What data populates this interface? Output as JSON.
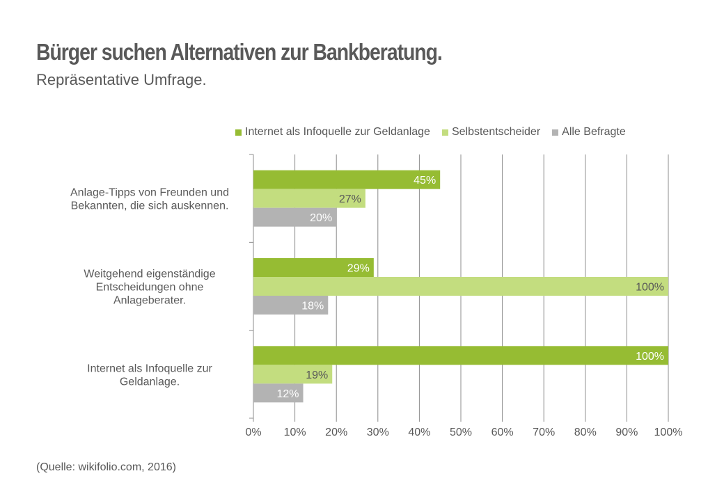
{
  "chart_data": {
    "type": "bar",
    "orientation": "horizontal",
    "title": "Bürger suchen Alternativen zur Bankberatung.",
    "subtitle": "Repräsentative Umfrage.",
    "categories": [
      [
        "Anlage-Tipps von Freunden und",
        "Bekannten, die sich auskennen."
      ],
      [
        "Weitgehend eigenständige",
        "Entscheidungen ohne",
        "Anlageberater."
      ],
      [
        "Internet als Infoquelle zur",
        "Geldanlage."
      ]
    ],
    "series": [
      {
        "name": "Internet als Infoquelle zur Geldanlage",
        "color": "#96bc33",
        "label_color": "#ffffff",
        "values": [
          45,
          29,
          100
        ]
      },
      {
        "name": "Selbstentscheider",
        "color": "#c3dd7f",
        "label_color": "#595959",
        "values": [
          27,
          100,
          19
        ]
      },
      {
        "name": "Alle Befragte",
        "color": "#b3b3b3",
        "label_color": "#ffffff",
        "values": [
          20,
          18,
          12
        ]
      }
    ],
    "xlabel": "",
    "ylabel": "",
    "xlim": [
      0,
      100
    ],
    "xticks": [
      0,
      10,
      20,
      30,
      40,
      50,
      60,
      70,
      80,
      90,
      100
    ],
    "tick_suffix": "%",
    "value_suffix": "%",
    "grid": true,
    "legend_position": "top-right",
    "source": "(Quelle: wikifolio.com, 2016)"
  }
}
